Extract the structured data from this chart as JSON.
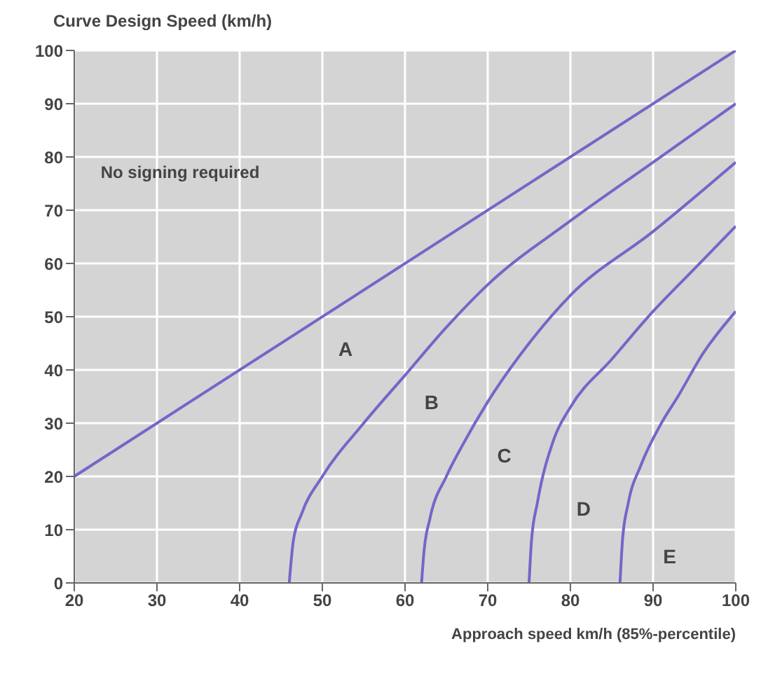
{
  "chart_data": {
    "type": "line",
    "ylabel": "Curve Design Speed (km/h)",
    "xlabel": "Approach speed km/h (85%-percentile)",
    "xlim": [
      20,
      100
    ],
    "xticks": [
      20,
      30,
      40,
      50,
      60,
      70,
      80,
      90,
      100
    ],
    "ylim": [
      0,
      100
    ],
    "yticks": [
      0,
      10,
      20,
      30,
      40,
      50,
      60,
      70,
      80,
      90,
      100
    ],
    "grid": true,
    "marker": "none",
    "line_style": "solid",
    "series": [
      {
        "color": "#7466c8",
        "x": [
          20,
          100
        ],
        "values": [
          20,
          100
        ]
      },
      {
        "color": "#7466c8",
        "x": [
          46,
          46.5,
          47.5,
          50,
          55,
          60,
          65,
          70,
          80,
          90,
          100
        ],
        "values": [
          0,
          8,
          13,
          20,
          30,
          39,
          48,
          56,
          68,
          79,
          90
        ]
      },
      {
        "color": "#7466c8",
        "x": [
          62,
          62.3,
          63,
          65,
          67,
          70,
          75,
          80,
          90,
          100
        ],
        "values": [
          0,
          6,
          12,
          20,
          26,
          34,
          45,
          54,
          66,
          79
        ]
      },
      {
        "color": "#7466c8",
        "x": [
          75,
          75.3,
          76,
          78,
          80,
          85,
          90,
          95,
          100
        ],
        "values": [
          0,
          8,
          15,
          27,
          33,
          42,
          51,
          59,
          67
        ]
      },
      {
        "color": "#7466c8",
        "x": [
          86,
          86.3,
          87,
          88.5,
          91,
          93,
          96,
          100
        ],
        "values": [
          0,
          8,
          15,
          22,
          30,
          35,
          43,
          51
        ]
      }
    ],
    "annotations": [
      "No signing required",
      "A",
      "B",
      "C",
      "D",
      "E"
    ]
  }
}
